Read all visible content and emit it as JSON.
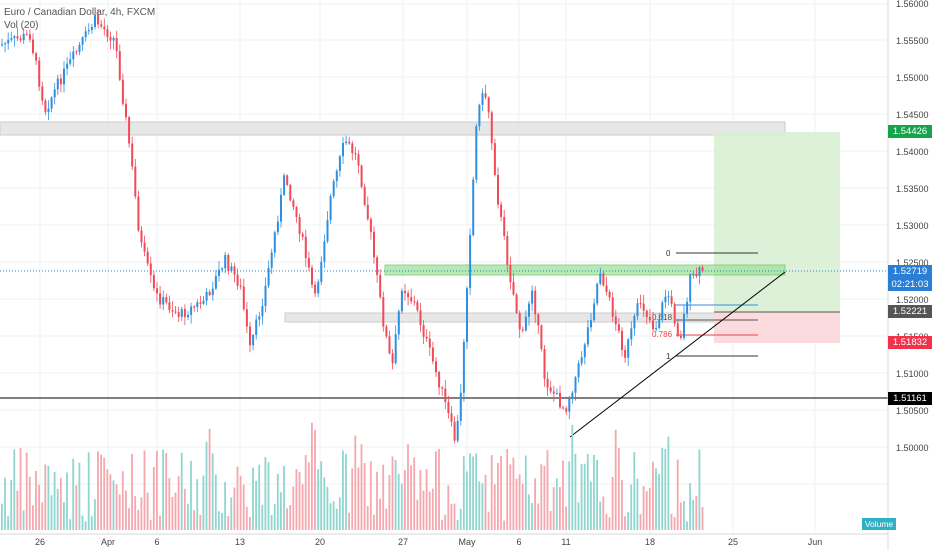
{
  "legend": {
    "symbol": "Euro / Canadian Dollar, 4h, FXCM",
    "indicator": "Vol (20)"
  },
  "price_axis": {
    "ticks": [
      "1.56000",
      "1.55500",
      "1.55000",
      "1.54500",
      "1.54000",
      "1.53500",
      "1.53000",
      "1.52500",
      "1.52000",
      "1.51500",
      "1.51000",
      "1.50500",
      "1.50000"
    ],
    "labels": {
      "target": {
        "value": "1.54426",
        "color": "#14a54a"
      },
      "current": {
        "value": "1.52719",
        "countdown": "02:21:03",
        "color": "#2a7fd4"
      },
      "entry": {
        "value": "1.52221",
        "color": "#555555"
      },
      "stop": {
        "value": "1.51832",
        "color": "#f0334b"
      },
      "hline": {
        "value": "1.51161",
        "color": "#000000"
      }
    }
  },
  "time_axis": {
    "ticks": [
      "26",
      "Apr",
      "6",
      "13",
      "20",
      "27",
      "May",
      "6",
      "11",
      "18",
      "25",
      "Jun"
    ]
  },
  "fib_labels": [
    "0",
    "0.618",
    "0.786",
    "1"
  ],
  "volume_label": "Volume",
  "colors": {
    "up": "#2d8fe0",
    "down": "#f04a57",
    "grid": "#eef0f3"
  }
}
